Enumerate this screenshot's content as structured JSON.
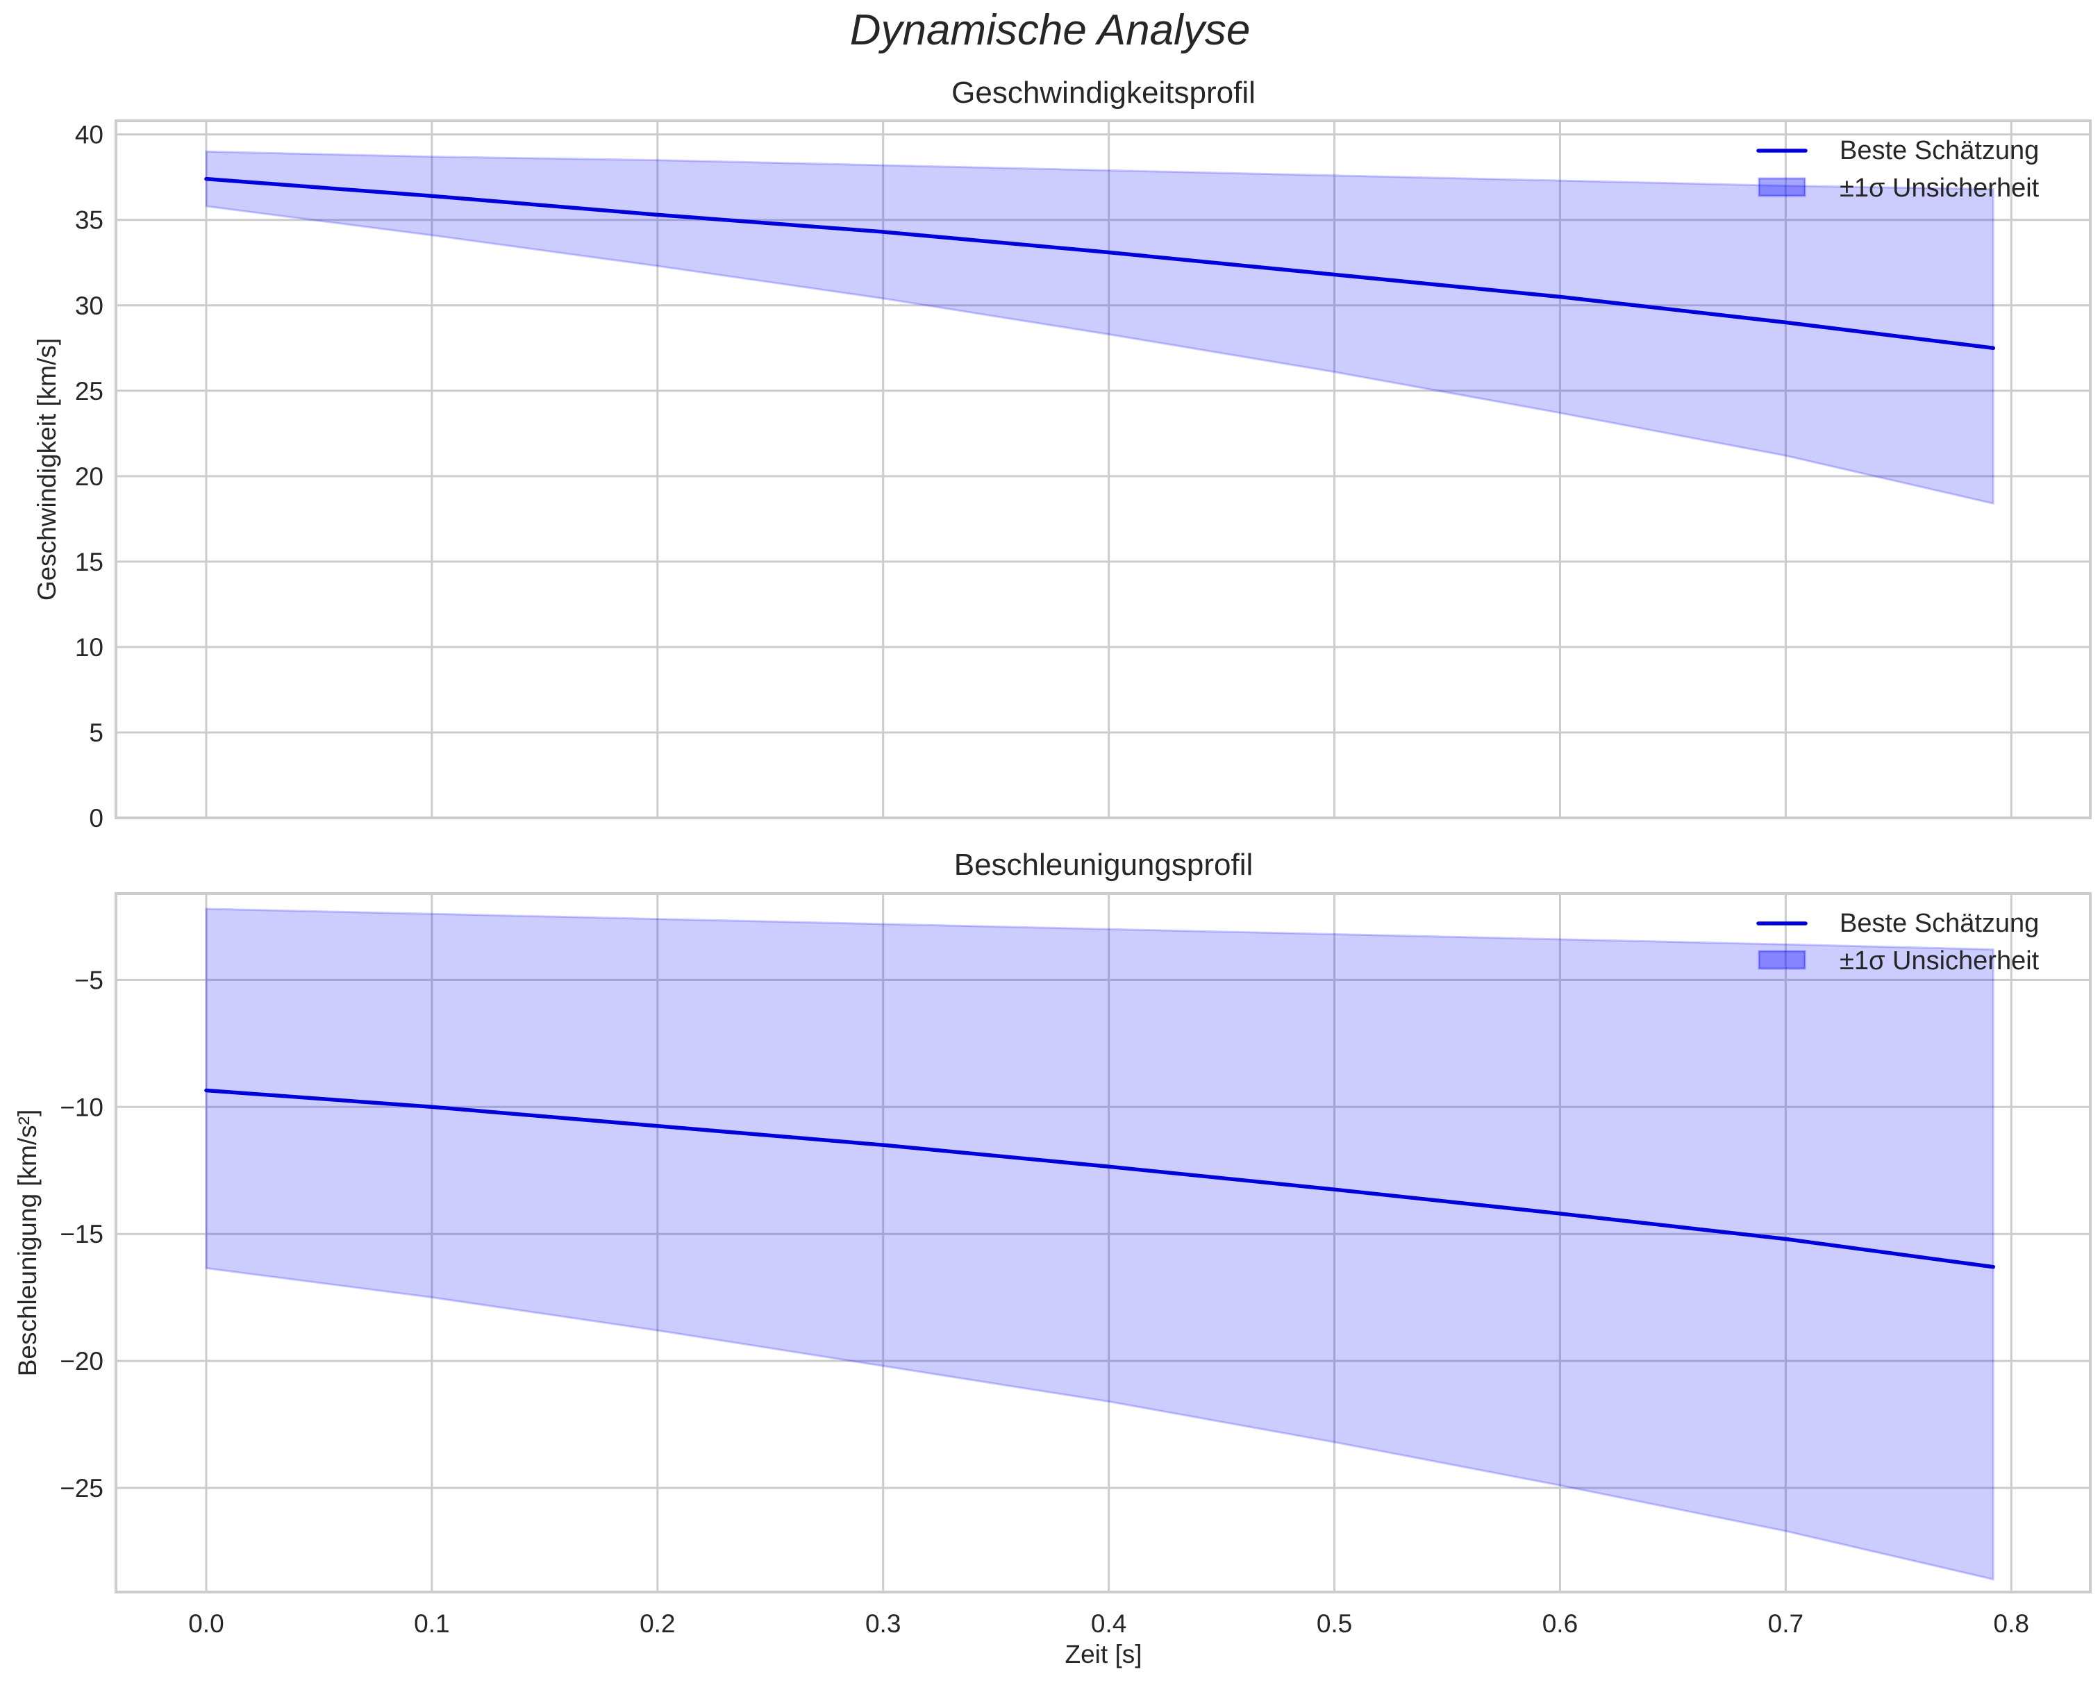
{
  "figure": {
    "suptitle": "Dynamische Analyse"
  },
  "colors": {
    "line": "#0000dd",
    "band_fill": "#0000ff",
    "band_alpha": 0.2,
    "grid": "#cccccc",
    "spine": "#cccccc",
    "text": "#262626"
  },
  "chart_data": [
    {
      "type": "line",
      "title": "Geschwindigkeitsprofil",
      "xlabel": "",
      "ylabel": "Geschwindigkeit [km/s]",
      "xlim": [
        -0.04,
        0.835
      ],
      "ylim": [
        0,
        40.8
      ],
      "grid": true,
      "xticks": [
        "0.0",
        "0.1",
        "0.2",
        "0.3",
        "0.4",
        "0.5",
        "0.6",
        "0.7",
        "0.8"
      ],
      "xticks_visible": false,
      "yticks": [
        "0",
        "5",
        "10",
        "15",
        "20",
        "25",
        "30",
        "35",
        "40"
      ],
      "legend": {
        "position": "upper right",
        "entries": [
          "Beste Schätzung",
          "±1σ Unsicherheit"
        ]
      },
      "x": [
        0.0,
        0.1,
        0.2,
        0.3,
        0.4,
        0.5,
        0.6,
        0.7,
        0.792
      ],
      "series": [
        {
          "name": "Beste Schätzung",
          "kind": "line",
          "values": [
            37.4,
            36.4,
            35.3,
            34.3,
            33.1,
            31.8,
            30.5,
            29.0,
            27.5
          ]
        },
        {
          "name": "±1σ Unsicherheit (obere Grenze)",
          "kind": "band_upper",
          "values": [
            39.0,
            38.7,
            38.5,
            38.2,
            37.9,
            37.6,
            37.3,
            37.0,
            36.8
          ]
        },
        {
          "name": "±1σ Unsicherheit (untere Grenze)",
          "kind": "band_lower",
          "values": [
            35.8,
            34.1,
            32.3,
            30.4,
            28.3,
            26.1,
            23.7,
            21.2,
            18.4
          ]
        }
      ]
    },
    {
      "type": "line",
      "title": "Beschleunigungsprofil",
      "xlabel": "Zeit [s]",
      "ylabel": "Beschleunigung [km/s²]",
      "xlim": [
        -0.04,
        0.835
      ],
      "ylim": [
        -29.1,
        -1.6
      ],
      "grid": true,
      "xticks": [
        "0.0",
        "0.1",
        "0.2",
        "0.3",
        "0.4",
        "0.5",
        "0.6",
        "0.7",
        "0.8"
      ],
      "yticks": [
        "−5",
        "−10",
        "−15",
        "−20",
        "−25"
      ],
      "legend": {
        "position": "upper right",
        "entries": [
          "Beste Schätzung",
          "±1σ Unsicherheit"
        ]
      },
      "x": [
        0.0,
        0.1,
        0.2,
        0.3,
        0.4,
        0.5,
        0.6,
        0.7,
        0.792
      ],
      "series": [
        {
          "name": "Beste Schätzung",
          "kind": "line",
          "values": [
            -9.35,
            -10.0,
            -10.75,
            -11.5,
            -12.35,
            -13.25,
            -14.2,
            -15.2,
            -16.3
          ]
        },
        {
          "name": "±1σ Unsicherheit (obere Grenze)",
          "kind": "band_upper",
          "values": [
            -2.2,
            -2.4,
            -2.6,
            -2.8,
            -3.0,
            -3.2,
            -3.4,
            -3.6,
            -3.8
          ]
        },
        {
          "name": "±1σ Unsicherheit (untere Grenze)",
          "kind": "band_lower",
          "values": [
            -16.35,
            -17.5,
            -18.8,
            -20.2,
            -21.6,
            -23.2,
            -24.9,
            -26.7,
            -28.6
          ]
        }
      ]
    }
  ]
}
